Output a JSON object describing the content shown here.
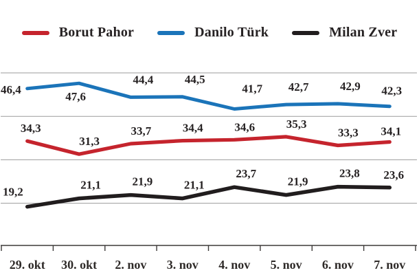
{
  "legend": {
    "items": [
      {
        "label": "Borut Pahor",
        "color": "#c5242d"
      },
      {
        "label": "Danilo Türk",
        "color": "#1b74b9"
      },
      {
        "label": "Milan Zver",
        "color": "#211d1e"
      }
    ]
  },
  "chart_data": {
    "type": "line",
    "categories": [
      "29. okt",
      "30. okt",
      "2. nov",
      "3. nov",
      "4. nov",
      "5. nov",
      "6. nov",
      "7. nov"
    ],
    "series": [
      {
        "name": "Danilo Türk",
        "color": "#1b74b9",
        "values": [
          46.4,
          47.6,
          44.4,
          44.5,
          41.7,
          42.7,
          42.9,
          42.3
        ],
        "labels": [
          "46,4",
          "47,6",
          "44,4",
          "44,5",
          "41,7",
          "42,7",
          "42,9",
          "42,3"
        ]
      },
      {
        "name": "Borut Pahor",
        "color": "#c5242d",
        "values": [
          34.3,
          31.3,
          33.7,
          34.4,
          34.6,
          35.3,
          33.3,
          34.1
        ],
        "labels": [
          "34,3",
          "31,3",
          "33,7",
          "34,4",
          "34,6",
          "35,3",
          "33,3",
          "34,1"
        ]
      },
      {
        "name": "Milan Zver",
        "color": "#211d1e",
        "values": [
          19.2,
          21.1,
          21.9,
          21.1,
          23.7,
          21.9,
          23.8,
          23.6
        ],
        "labels": [
          "19,2",
          "21,1",
          "21,9",
          "21,1",
          "23,7",
          "21,9",
          "23,8",
          "23,6"
        ]
      }
    ],
    "ylim": [
      10,
      50
    ],
    "gridline_values": [
      50,
      40,
      30,
      20
    ],
    "grid": true,
    "legend_position": "top",
    "decimal_separator": ",",
    "grid_color": "#9b9b9b",
    "axis_color": "#3d3a39"
  }
}
